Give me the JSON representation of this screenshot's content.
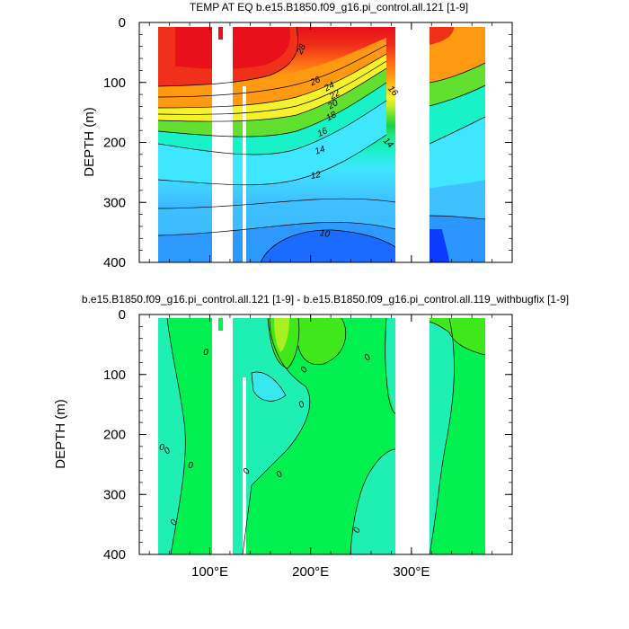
{
  "chart_data": [
    {
      "type": "contour",
      "title": "TEMP AT EQ b.e15.B1850.f09_g16.pi_control.all.121 [1-9]",
      "xlabel": "",
      "ylabel": "DEPTH (m)",
      "xlim": [
        30,
        400
      ],
      "ylim": [
        400,
        0
      ],
      "yticks": [
        0,
        100,
        200,
        300,
        400
      ],
      "xticks": [
        100,
        200,
        300
      ],
      "contour_labels": [
        "28",
        "26",
        "24",
        "22",
        "20",
        "18",
        "16",
        "16",
        "14",
        "14",
        "12",
        "10"
      ],
      "contour_levels_degC": [
        10,
        12,
        14,
        16,
        18,
        20,
        22,
        24,
        26,
        28
      ],
      "colormap": [
        "#0a3cff",
        "#1a6bff",
        "#2b96ff",
        "#3fc0ff",
        "#3fe6ff",
        "#17f2c9",
        "#1ee88a",
        "#16d24a",
        "#62e030",
        "#b8ec28",
        "#f6f22a",
        "#ffc914",
        "#ff9a10",
        "#ff6a12",
        "#f03018",
        "#e8101a"
      ],
      "masked_longitude_bands": [
        [
          97,
          117
        ],
        [
          122,
          135
        ],
        [
          277,
          314
        ],
        [
          370,
          400
        ]
      ]
    },
    {
      "type": "contour",
      "title": "b.e15.B1850.f09_g16.pi_control.all.121 [1-9] - b.e15.B1850.f09_g16.pi_control.all.119_withbugfix [1-9]",
      "xlabel": "",
      "ylabel": "DEPTH (m)",
      "xlim": [
        30,
        400
      ],
      "ylim": [
        400,
        0
      ],
      "yticks": [
        0,
        100,
        200,
        300,
        400
      ],
      "xticks": [
        100,
        200,
        300
      ],
      "xtick_labels": [
        "100°E",
        "200°E",
        "300°E"
      ],
      "contour_labels": [
        "0",
        "0",
        "0",
        "0",
        "0",
        "0",
        "0",
        "0",
        "0",
        "0",
        "0"
      ],
      "colormap": [
        "#1ef0b4",
        "#00f050",
        "#3fe81a",
        "#aaf020"
      ],
      "masked_longitude_bands": [
        [
          97,
          117
        ],
        [
          122,
          135
        ],
        [
          277,
          314
        ],
        [
          370,
          400
        ]
      ]
    }
  ],
  "units": {
    "degree_east": "°E"
  }
}
